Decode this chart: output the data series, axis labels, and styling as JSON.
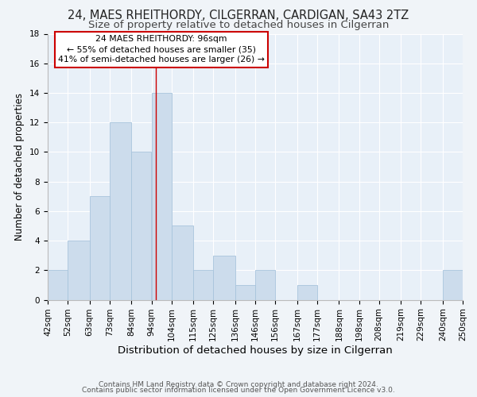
{
  "title1": "24, MAES RHEITHORDY, CILGERRAN, CARDIGAN, SA43 2TZ",
  "title2": "Size of property relative to detached houses in Cilgerran",
  "xlabel": "Distribution of detached houses by size in Cilgerran",
  "ylabel": "Number of detached properties",
  "bin_labels": [
    "42sqm",
    "52sqm",
    "63sqm",
    "73sqm",
    "84sqm",
    "94sqm",
    "104sqm",
    "115sqm",
    "125sqm",
    "136sqm",
    "146sqm",
    "156sqm",
    "167sqm",
    "177sqm",
    "188sqm",
    "198sqm",
    "208sqm",
    "219sqm",
    "229sqm",
    "240sqm",
    "250sqm"
  ],
  "bin_edges": [
    42,
    52,
    63,
    73,
    84,
    94,
    104,
    115,
    125,
    136,
    146,
    156,
    167,
    177,
    188,
    198,
    208,
    219,
    229,
    240,
    250
  ],
  "counts": [
    2,
    4,
    7,
    12,
    10,
    14,
    5,
    2,
    3,
    1,
    2,
    0,
    1,
    0,
    0,
    0,
    0,
    0,
    0,
    2
  ],
  "bar_color": "#ccdcec",
  "bar_edge_color": "#a8c4dc",
  "vline_x": 96,
  "vline_color": "#cc0000",
  "annotation_title": "24 MAES RHEITHORDY: 96sqm",
  "annotation_line1": "← 55% of detached houses are smaller (35)",
  "annotation_line2": "41% of semi-detached houses are larger (26) →",
  "annotation_box_facecolor": "#ffffff",
  "annotation_box_edgecolor": "#cc0000",
  "ylim": [
    0,
    18
  ],
  "yticks": [
    0,
    2,
    4,
    6,
    8,
    10,
    12,
    14,
    16,
    18
  ],
  "footer1": "Contains HM Land Registry data © Crown copyright and database right 2024.",
  "footer2": "Contains public sector information licensed under the Open Government Licence v3.0.",
  "background_color": "#f0f4f8",
  "plot_bg_color": "#e8f0f8",
  "grid_color": "#ffffff",
  "title1_fontsize": 10.5,
  "title2_fontsize": 9.5,
  "xlabel_fontsize": 9.5,
  "ylabel_fontsize": 8.5,
  "tick_fontsize": 7.5,
  "annotation_fontsize": 7.8,
  "footer_fontsize": 6.5
}
